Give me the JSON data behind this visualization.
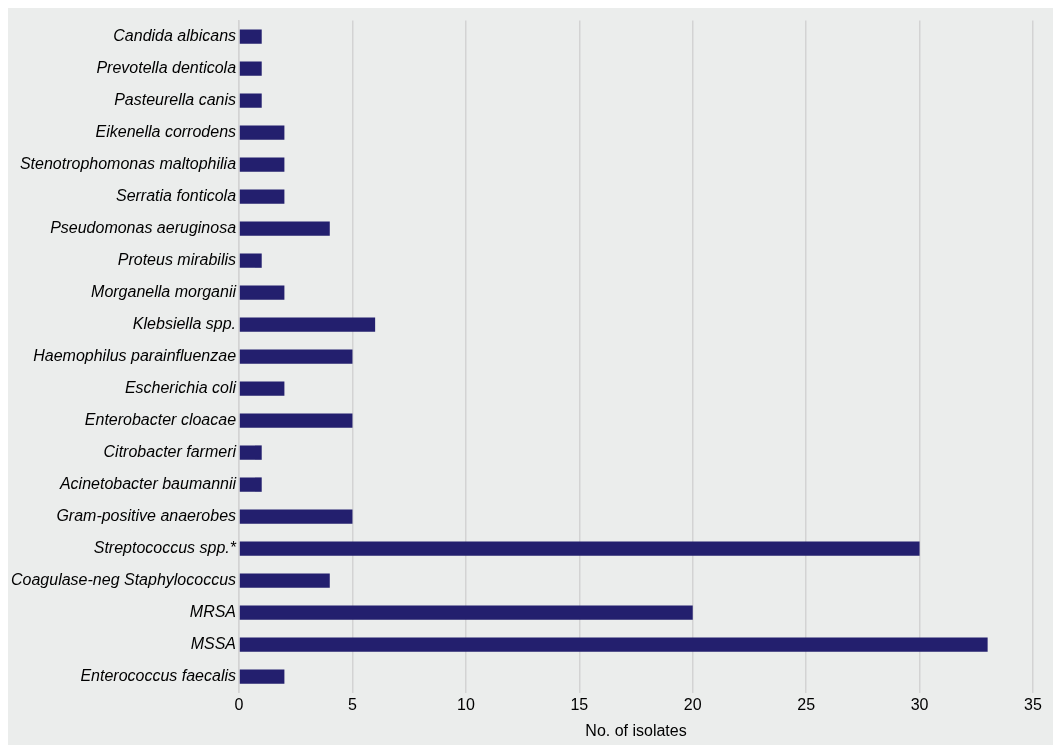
{
  "chart_data": {
    "type": "bar",
    "orientation": "horizontal",
    "xlabel": "No. of isolates",
    "categories": [
      "Candida albicans",
      "Prevotella denticola",
      "Pasteurella canis",
      "Eikenella corrodens",
      "Stenotrophomonas maltophilia",
      "Serratia fonticola",
      "Pseudomonas aeruginosa",
      "Proteus mirabilis",
      "Morganella morganii",
      "Klebsiella spp.",
      "Haemophilus parainfluenzae",
      "Escherichia coli",
      "Enterobacter cloacae",
      "Citrobacter farmeri",
      "Acinetobacter baumannii",
      "Gram-positive anaerobes",
      "Streptococcus spp.*",
      "Coagulase-neg Staphylococcus",
      "MRSA",
      "MSSA",
      "Enterococcus faecalis"
    ],
    "values": [
      1,
      1,
      1,
      2,
      2,
      2,
      4,
      1,
      2,
      6,
      5,
      2,
      5,
      1,
      1,
      5,
      30,
      4,
      20,
      33,
      2
    ],
    "color": "#231f6e",
    "xlim": [
      0,
      35
    ],
    "xticks": [
      0,
      5,
      10,
      15,
      20,
      25,
      30,
      35
    ],
    "grid": "x",
    "legend": false
  }
}
